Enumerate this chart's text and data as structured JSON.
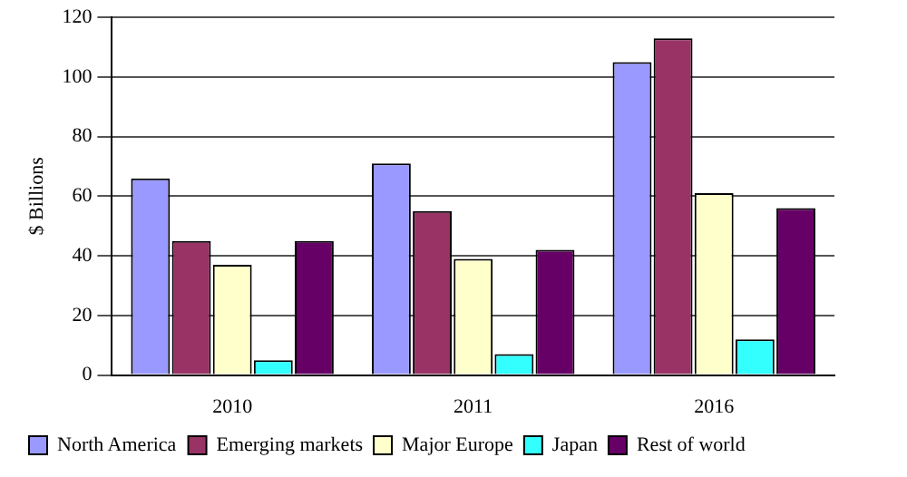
{
  "chart_data": {
    "type": "bar",
    "ylabel": "$ Billions",
    "categories": [
      "2010",
      "2011",
      "2016"
    ],
    "series": [
      {
        "name": "North America",
        "color": "#9999ff",
        "values": [
          66,
          71,
          105
        ]
      },
      {
        "name": "Emerging markets",
        "color": "#993366",
        "values": [
          45,
          55,
          113
        ]
      },
      {
        "name": "Major Europe",
        "color": "#ffffcc",
        "values": [
          37,
          39,
          61
        ]
      },
      {
        "name": "Japan",
        "color": "#33ffff",
        "values": [
          5,
          7,
          12
        ]
      },
      {
        "name": "Rest of world",
        "color": "#660066",
        "values": [
          45,
          42,
          56
        ]
      }
    ],
    "ylim": [
      0,
      120
    ],
    "yticks": [
      0,
      20,
      40,
      60,
      80,
      100,
      120
    ],
    "grid": "y",
    "legend": "bottom"
  }
}
